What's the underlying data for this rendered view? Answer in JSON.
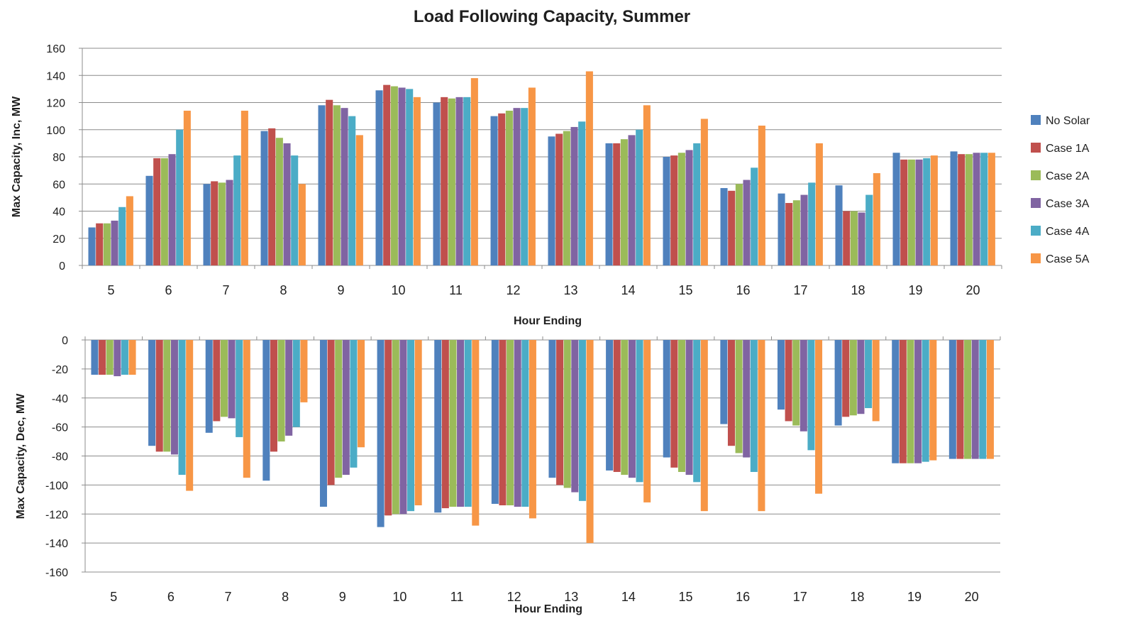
{
  "title": "Load Following Capacity, Summer",
  "legend": {
    "placement": "right",
    "items": [
      "No Solar",
      "Case 1A",
      "Case 2A",
      "Case 3A",
      "Case 4A",
      "Case 5A"
    ]
  },
  "colors": [
    "#4f81bd",
    "#c0504d",
    "#9bbb59",
    "#8064a2",
    "#4bacc6",
    "#f79646"
  ],
  "chart_data": [
    {
      "type": "bar",
      "title": "Load Following Capacity, Summer",
      "xlabel": "Hour Ending",
      "ylabel": "Max Capacity,  Inc, MW",
      "ylim": [
        0,
        160
      ],
      "yticks": [
        0,
        20,
        40,
        60,
        80,
        100,
        120,
        140,
        160
      ],
      "grid": true,
      "legend": "right",
      "categories": [
        "5",
        "6",
        "7",
        "8",
        "9",
        "10",
        "11",
        "12",
        "13",
        "14",
        "15",
        "16",
        "17",
        "18",
        "19",
        "20"
      ],
      "series": [
        {
          "name": "No Solar",
          "values": [
            28,
            66,
            60,
            99,
            118,
            129,
            120,
            110,
            95,
            90,
            80,
            57,
            53,
            59,
            83,
            84
          ]
        },
        {
          "name": "Case 1A",
          "values": [
            31,
            79,
            62,
            101,
            122,
            133,
            124,
            112,
            97,
            90,
            81,
            55,
            46,
            40,
            78,
            82
          ]
        },
        {
          "name": "Case 2A",
          "values": [
            31,
            79,
            61,
            94,
            118,
            132,
            123,
            114,
            99,
            93,
            83,
            60,
            48,
            40,
            78,
            82
          ]
        },
        {
          "name": "Case 3A",
          "values": [
            33,
            82,
            63,
            90,
            116,
            131,
            124,
            116,
            102,
            96,
            85,
            63,
            52,
            39,
            78,
            83
          ]
        },
        {
          "name": "Case 4A",
          "values": [
            43,
            100,
            81,
            81,
            110,
            130,
            124,
            116,
            106,
            100,
            90,
            72,
            61,
            52,
            79,
            83
          ]
        },
        {
          "name": "Case 5A",
          "values": [
            51,
            114,
            114,
            60,
            96,
            124,
            138,
            131,
            143,
            118,
            108,
            103,
            90,
            68,
            81,
            83
          ]
        }
      ]
    },
    {
      "type": "bar",
      "xlabel": "Hour Ending",
      "ylabel": "Max Capacity,  Dec, MW",
      "ylim": [
        -160,
        0
      ],
      "yticks": [
        0,
        -20,
        -40,
        -60,
        -80,
        -100,
        -120,
        -140,
        -160
      ],
      "grid": true,
      "categories": [
        "5",
        "6",
        "7",
        "8",
        "9",
        "10",
        "11",
        "12",
        "13",
        "14",
        "15",
        "16",
        "17",
        "18",
        "19",
        "20"
      ],
      "series": [
        {
          "name": "No Solar",
          "values": [
            -24,
            -73,
            -64,
            -97,
            -115,
            -129,
            -119,
            -113,
            -95,
            -90,
            -81,
            -58,
            -48,
            -59,
            -85,
            -82
          ]
        },
        {
          "name": "Case 1A",
          "values": [
            -24,
            -77,
            -56,
            -77,
            -100,
            -121,
            -116,
            -114,
            -100,
            -91,
            -88,
            -73,
            -56,
            -53,
            -85,
            -82
          ]
        },
        {
          "name": "Case 2A",
          "values": [
            -24,
            -77,
            -53,
            -70,
            -95,
            -120,
            -115,
            -114,
            -102,
            -93,
            -91,
            -78,
            -59,
            -52,
            -85,
            -82
          ]
        },
        {
          "name": "Case 3A",
          "values": [
            -25,
            -79,
            -54,
            -66,
            -93,
            -120,
            -115,
            -115,
            -105,
            -95,
            -93,
            -81,
            -63,
            -51,
            -85,
            -82
          ]
        },
        {
          "name": "Case 4A",
          "values": [
            -24,
            -93,
            -67,
            -60,
            -88,
            -118,
            -115,
            -115,
            -111,
            -98,
            -98,
            -91,
            -76,
            -47,
            -84,
            -82
          ]
        },
        {
          "name": "Case 5A",
          "values": [
            -24,
            -104,
            -95,
            -43,
            -74,
            -114,
            -128,
            -123,
            -140,
            -112,
            -118,
            -118,
            -106,
            -56,
            -83,
            -82
          ]
        }
      ]
    }
  ]
}
